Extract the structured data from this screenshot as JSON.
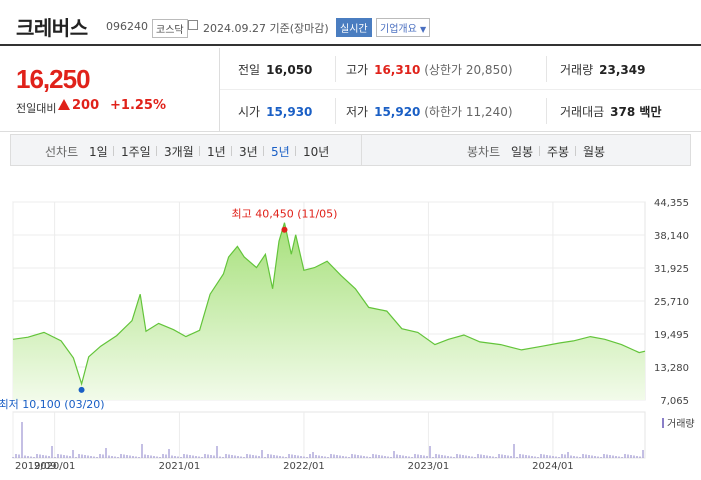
{
  "stock": {
    "name": "크레버스",
    "code": "096240",
    "market": "코스닥",
    "date": "2024.09.27",
    "basis": "기준(장마감)",
    "realtime_label": "실시간",
    "company_info_label": "기업개요"
  },
  "price": {
    "current": "16,250",
    "prev_label": "전일대비",
    "change": "200",
    "change_pct": "+1.25%"
  },
  "stats": {
    "prev_close": {
      "label": "전일",
      "value": "16,050"
    },
    "high": {
      "label": "고가",
      "value": "16,310",
      "limit": "(상한가 20,850)"
    },
    "volume": {
      "label": "거래량",
      "value": "23,349"
    },
    "open": {
      "label": "시가",
      "value": "15,930"
    },
    "low": {
      "label": "저가",
      "value": "15,920",
      "limit": "(하한가 11,240)"
    },
    "trade_value": {
      "label": "거래대금",
      "value": "378 백만"
    }
  },
  "tabs": {
    "line_label": "선차트",
    "periods": [
      "1일",
      "1주일",
      "3개월",
      "1년",
      "3년",
      "5년",
      "10년"
    ],
    "active_period": "5년",
    "candle_label": "봉차트",
    "candles": [
      "일봉",
      "주봉",
      "월봉"
    ]
  },
  "colors": {
    "up": "#e0221a",
    "down": "#1a5fc5",
    "area_fill": "#c8ecaa",
    "line": "#63c43a"
  },
  "chart_data": {
    "type": "area",
    "y_ticks": [
      44355,
      38140,
      31925,
      25710,
      19495,
      13280,
      7065
    ],
    "y_tick_labels": [
      "44,355",
      "38,140",
      "31,925",
      "25,710",
      "19,495",
      "13,280",
      "7,065"
    ],
    "ylim": [
      7065,
      44355
    ],
    "x_ticks": [
      "2019/09",
      "2020/01",
      "2021/01",
      "2022/01",
      "2023/01",
      "2024/01"
    ],
    "x_tick_dates": [
      "2019-09-01",
      "2020-01-01",
      "2021-01-01",
      "2022-01-01",
      "2023-01-01",
      "2024-01-01"
    ],
    "x_range": [
      "2019-09-01",
      "2024-09-27"
    ],
    "series": [
      {
        "values": [
          [
            "2019-09-01",
            18500
          ],
          [
            "2019-10-15",
            18900
          ],
          [
            "2019-12-01",
            19800
          ],
          [
            "2020-01-20",
            18200
          ],
          [
            "2020-02-25",
            15000
          ],
          [
            "2020-03-20",
            10100
          ],
          [
            "2020-04-10",
            15200
          ],
          [
            "2020-05-15",
            17200
          ],
          [
            "2020-07-01",
            19200
          ],
          [
            "2020-08-15",
            22000
          ],
          [
            "2020-09-08",
            27000
          ],
          [
            "2020-09-25",
            20000
          ],
          [
            "2020-11-01",
            21500
          ],
          [
            "2020-12-15",
            20300
          ],
          [
            "2021-01-20",
            19000
          ],
          [
            "2021-03-01",
            20200
          ],
          [
            "2021-04-01",
            27000
          ],
          [
            "2021-05-10",
            30800
          ],
          [
            "2021-05-25",
            34000
          ],
          [
            "2021-06-20",
            36000
          ],
          [
            "2021-07-10",
            34000
          ],
          [
            "2021-08-15",
            32000
          ],
          [
            "2021-09-10",
            34500
          ],
          [
            "2021-10-01",
            28000
          ],
          [
            "2021-10-20",
            37000
          ],
          [
            "2021-11-05",
            40450
          ],
          [
            "2021-11-25",
            34500
          ],
          [
            "2021-12-08",
            38200
          ],
          [
            "2022-01-01",
            31500
          ],
          [
            "2022-02-01",
            32000
          ],
          [
            "2022-03-10",
            33200
          ],
          [
            "2022-04-20",
            30500
          ],
          [
            "2022-06-01",
            28000
          ],
          [
            "2022-07-10",
            24500
          ],
          [
            "2022-09-01",
            23800
          ],
          [
            "2022-10-15",
            20500
          ],
          [
            "2022-12-01",
            19800
          ],
          [
            "2023-01-20",
            17500
          ],
          [
            "2023-03-01",
            18500
          ],
          [
            "2023-04-15",
            19300
          ],
          [
            "2023-06-01",
            18000
          ],
          [
            "2023-08-01",
            17500
          ],
          [
            "2023-10-01",
            16500
          ],
          [
            "2023-12-01",
            17200
          ],
          [
            "2024-01-20",
            17800
          ],
          [
            "2024-03-01",
            18200
          ],
          [
            "2024-04-20",
            19000
          ],
          [
            "2024-06-01",
            18500
          ],
          [
            "2024-07-20",
            17500
          ],
          [
            "2024-09-10",
            16000
          ],
          [
            "2024-09-27",
            16250
          ]
        ]
      }
    ],
    "annotations": [
      {
        "label": "최고 40,450 (11/05)",
        "date": "2021-11-05",
        "value": 40450,
        "color": "#e0221a"
      },
      {
        "label": "최저 10,100 (03/20)",
        "date": "2020-03-20",
        "value": 10100,
        "color": "#1a5fc5"
      }
    ],
    "volume_label": "거래량",
    "grid": true
  }
}
